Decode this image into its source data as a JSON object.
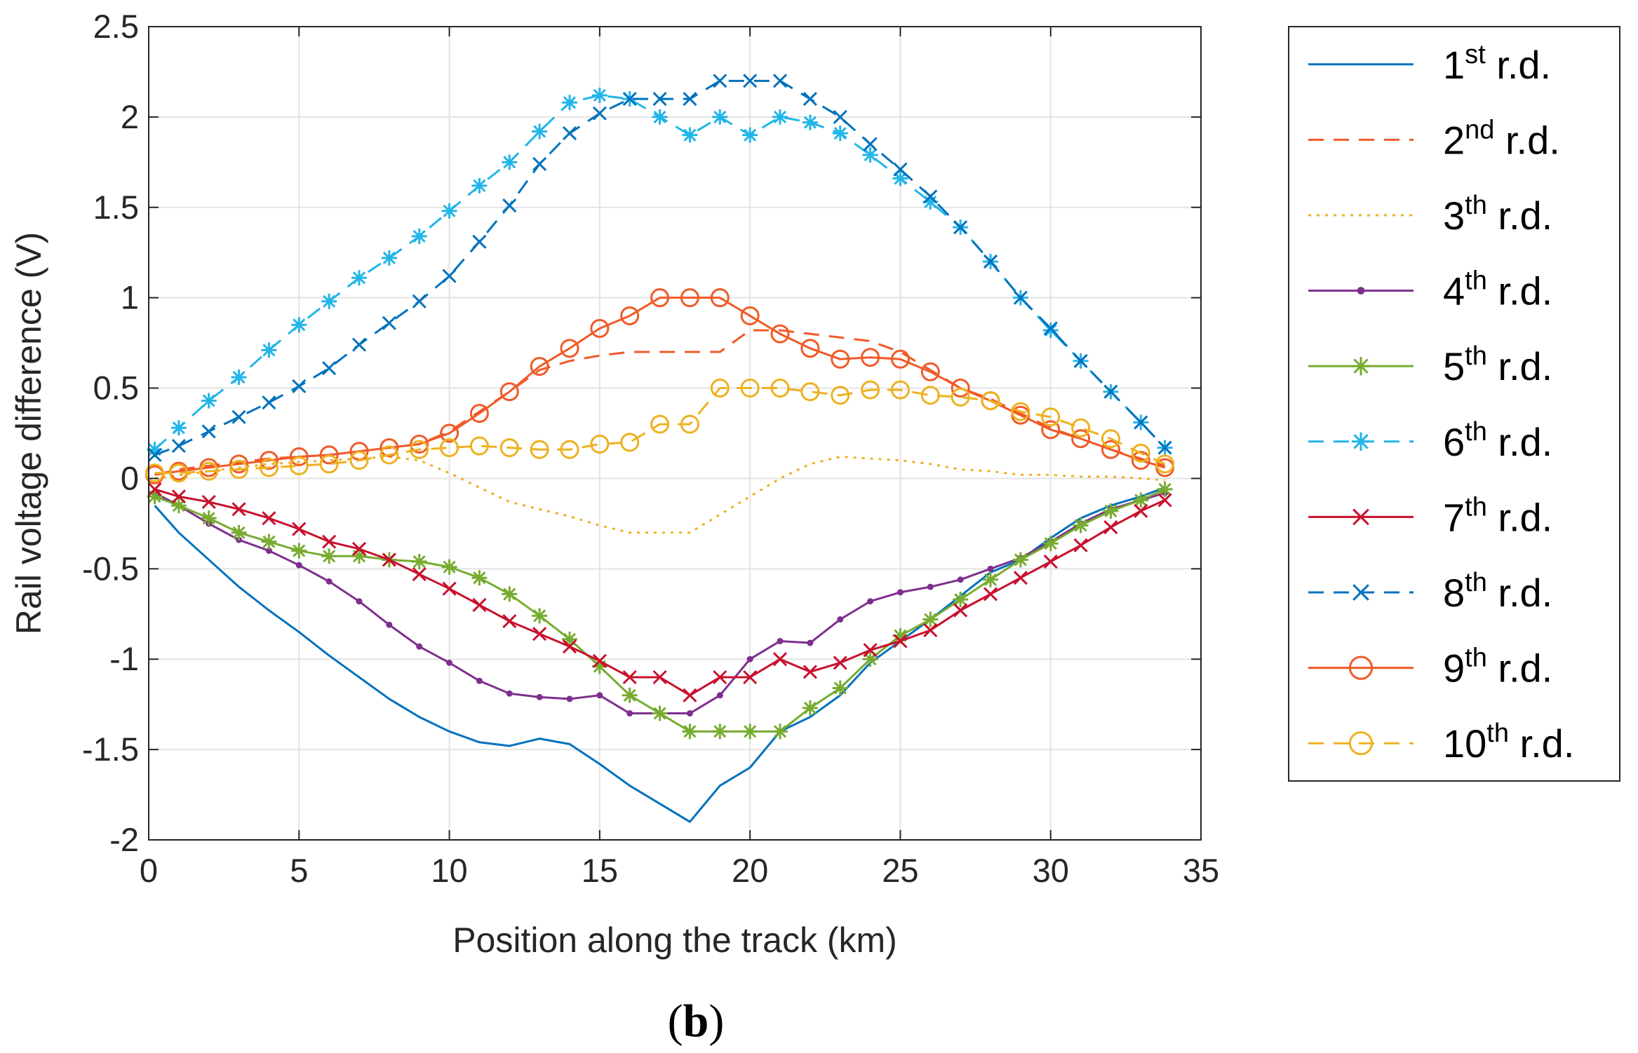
{
  "caption": {
    "open": "(",
    "letter": "b",
    "close": ")"
  },
  "chart_data": {
    "type": "line",
    "title": "",
    "xlabel": "Position along the track (km)",
    "ylabel": "Rail voltage difference (V)",
    "xlim": [
      0,
      35
    ],
    "ylim": [
      -2,
      2.5
    ],
    "xticks": [
      "0",
      "5",
      "10",
      "15",
      "20",
      "25",
      "30",
      "35"
    ],
    "yticks": [
      "-2",
      "-1.5",
      "-1",
      "-0.5",
      "0",
      "0.5",
      "1",
      "1.5",
      "2",
      "2.5"
    ],
    "grid": true,
    "legend_position": "outside-right",
    "series": [
      {
        "name": "1st r.d.",
        "base": "1",
        "sup": "st",
        "suffix": " r.d.",
        "color": "#0072BD",
        "dash": "solid",
        "marker": "none",
        "x": [
          0.2,
          1,
          2,
          3,
          4,
          5,
          6,
          7,
          8,
          9,
          10,
          11,
          12,
          13,
          14,
          15,
          16,
          17,
          18,
          19,
          20,
          21,
          22,
          23,
          24,
          25,
          26,
          27,
          28,
          29,
          30,
          31,
          32,
          33,
          33.8
        ],
        "y": [
          -0.15,
          -0.3,
          -0.45,
          -0.6,
          -0.73,
          -0.85,
          -0.98,
          -1.1,
          -1.22,
          -1.32,
          -1.4,
          -1.46,
          -1.48,
          -1.44,
          -1.47,
          -1.58,
          -1.7,
          -1.8,
          -1.9,
          -1.7,
          -1.6,
          -1.4,
          -1.32,
          -1.2,
          -1.02,
          -0.9,
          -0.78,
          -0.65,
          -0.52,
          -0.45,
          -0.33,
          -0.22,
          -0.15,
          -0.1,
          -0.05
        ]
      },
      {
        "name": "2nd r.d.",
        "base": "2",
        "sup": "nd",
        "suffix": " r.d.",
        "color": "#F05A28",
        "dash": "dashed",
        "marker": "none",
        "x": [
          0.2,
          1,
          2,
          3,
          4,
          5,
          6,
          7,
          8,
          9,
          10,
          11,
          12,
          13,
          14,
          15,
          16,
          17,
          18,
          19,
          20,
          21,
          22,
          23,
          24,
          25,
          26,
          27,
          28,
          29,
          30,
          31,
          32,
          33,
          33.8
        ],
        "y": [
          0.02,
          0.05,
          0.07,
          0.09,
          0.11,
          0.12,
          0.13,
          0.15,
          0.17,
          0.19,
          0.26,
          0.37,
          0.48,
          0.6,
          0.65,
          0.68,
          0.7,
          0.7,
          0.7,
          0.7,
          0.82,
          0.82,
          0.8,
          0.78,
          0.76,
          0.7,
          0.6,
          0.5,
          0.44,
          0.36,
          0.28,
          0.22,
          0.16,
          0.11,
          0.07
        ]
      },
      {
        "name": "3th r.d.",
        "base": "3",
        "sup": "th",
        "suffix": " r.d.",
        "color": "#EDB120",
        "dash": "dotted",
        "marker": "none",
        "x": [
          0.2,
          2,
          4,
          6,
          8,
          9,
          10,
          11,
          12,
          13,
          14,
          15,
          16,
          17,
          18,
          19,
          20,
          21,
          22,
          23,
          24,
          25,
          26,
          27,
          28,
          29,
          30,
          31,
          32,
          33,
          33.8
        ],
        "y": [
          0.0,
          0.04,
          0.08,
          0.1,
          0.12,
          0.1,
          0.03,
          -0.05,
          -0.13,
          -0.17,
          -0.21,
          -0.26,
          -0.3,
          -0.3,
          -0.3,
          -0.2,
          -0.1,
          0.0,
          0.08,
          0.12,
          0.11,
          0.1,
          0.08,
          0.05,
          0.04,
          0.02,
          0.02,
          0.01,
          0.01,
          0.0,
          -0.01
        ]
      },
      {
        "name": "4th r.d.",
        "base": "4",
        "sup": "th",
        "suffix": " r.d.",
        "color": "#7E2F8E",
        "dash": "solid",
        "marker": "dot",
        "x": [
          0.2,
          1,
          2,
          3,
          4,
          5,
          6,
          7,
          8,
          9,
          10,
          11,
          12,
          13,
          14,
          15,
          16,
          17,
          18,
          19,
          20,
          21,
          22,
          23,
          24,
          25,
          26,
          27,
          28,
          29,
          30,
          31,
          32,
          33,
          33.8
        ],
        "y": [
          -0.08,
          -0.15,
          -0.25,
          -0.34,
          -0.4,
          -0.48,
          -0.57,
          -0.68,
          -0.81,
          -0.93,
          -1.02,
          -1.12,
          -1.19,
          -1.21,
          -1.22,
          -1.2,
          -1.3,
          -1.3,
          -1.3,
          -1.2,
          -1.0,
          -0.9,
          -0.91,
          -0.78,
          -0.68,
          -0.63,
          -0.6,
          -0.56,
          -0.5,
          -0.44,
          -0.35,
          -0.25,
          -0.17,
          -0.12,
          -0.08
        ]
      },
      {
        "name": "5th r.d.",
        "base": "5",
        "sup": "th",
        "suffix": " r.d.",
        "color": "#77AC30",
        "dash": "solid",
        "marker": "asterisk",
        "x": [
          0.2,
          1,
          2,
          3,
          4,
          5,
          6,
          7,
          8,
          9,
          10,
          11,
          12,
          13,
          14,
          15,
          16,
          17,
          18,
          19,
          20,
          21,
          22,
          23,
          24,
          25,
          26,
          27,
          28,
          29,
          30,
          31,
          32,
          33,
          33.8
        ],
        "y": [
          -0.1,
          -0.15,
          -0.22,
          -0.3,
          -0.35,
          -0.4,
          -0.43,
          -0.43,
          -0.45,
          -0.46,
          -0.49,
          -0.55,
          -0.64,
          -0.76,
          -0.89,
          -1.04,
          -1.2,
          -1.3,
          -1.4,
          -1.4,
          -1.4,
          -1.4,
          -1.27,
          -1.16,
          -1.0,
          -0.87,
          -0.78,
          -0.67,
          -0.56,
          -0.45,
          -0.36,
          -0.26,
          -0.18,
          -0.12,
          -0.06
        ]
      },
      {
        "name": "6th r.d.",
        "base": "6",
        "sup": "th",
        "suffix": " r.d.",
        "color": "#22B5E8",
        "dash": "dashed",
        "marker": "asterisk",
        "x": [
          0.2,
          1,
          2,
          3,
          4,
          5,
          6,
          7,
          8,
          9,
          10,
          11,
          12,
          13,
          14,
          15,
          16,
          17,
          18,
          19,
          20,
          21,
          22,
          23,
          24,
          25,
          26,
          27,
          28,
          29,
          30,
          31,
          32,
          33,
          33.8
        ],
        "y": [
          0.16,
          0.28,
          0.43,
          0.56,
          0.71,
          0.85,
          0.98,
          1.11,
          1.22,
          1.34,
          1.48,
          1.62,
          1.75,
          1.92,
          2.08,
          2.12,
          2.1,
          2.0,
          1.9,
          2.0,
          1.9,
          2.0,
          1.97,
          1.91,
          1.79,
          1.66,
          1.53,
          1.39,
          1.2,
          1.0,
          0.82,
          0.65,
          0.48,
          0.31,
          0.17
        ]
      },
      {
        "name": "7th r.d.",
        "base": "7",
        "sup": "th",
        "suffix": " r.d.",
        "color": "#C8102E",
        "dash": "solid",
        "marker": "x",
        "x": [
          0.2,
          1,
          2,
          3,
          4,
          5,
          6,
          7,
          8,
          9,
          10,
          11,
          12,
          13,
          14,
          15,
          16,
          17,
          18,
          19,
          20,
          21,
          22,
          23,
          24,
          25,
          26,
          27,
          28,
          29,
          30,
          31,
          32,
          33,
          33.8
        ],
        "y": [
          -0.06,
          -0.1,
          -0.13,
          -0.17,
          -0.22,
          -0.28,
          -0.35,
          -0.39,
          -0.45,
          -0.53,
          -0.61,
          -0.7,
          -0.79,
          -0.86,
          -0.93,
          -1.01,
          -1.1,
          -1.1,
          -1.2,
          -1.1,
          -1.1,
          -1.0,
          -1.07,
          -1.02,
          -0.95,
          -0.9,
          -0.84,
          -0.73,
          -0.64,
          -0.55,
          -0.46,
          -0.37,
          -0.27,
          -0.18,
          -0.12
        ]
      },
      {
        "name": "8th r.d.",
        "base": "8",
        "sup": "th",
        "suffix": " r.d.",
        "color": "#0072BD",
        "dash": "dashed",
        "marker": "x",
        "x": [
          0.2,
          1,
          2,
          3,
          4,
          5,
          6,
          7,
          8,
          9,
          10,
          11,
          12,
          13,
          14,
          15,
          16,
          17,
          18,
          19,
          20,
          21,
          22,
          23,
          24,
          25,
          26,
          27,
          28,
          29,
          30,
          31,
          32,
          33,
          33.8
        ],
        "y": [
          0.13,
          0.18,
          0.26,
          0.34,
          0.42,
          0.51,
          0.61,
          0.74,
          0.86,
          0.98,
          1.12,
          1.31,
          1.51,
          1.74,
          1.91,
          2.02,
          2.1,
          2.1,
          2.1,
          2.2,
          2.2,
          2.2,
          2.1,
          2.0,
          1.85,
          1.71,
          1.56,
          1.39,
          1.2,
          1.0,
          0.83,
          0.65,
          0.48,
          0.31,
          0.17
        ]
      },
      {
        "name": "9th r.d.",
        "base": "9",
        "sup": "th",
        "suffix": " r.d.",
        "color": "#F05A28",
        "dash": "solid",
        "marker": "circle",
        "x": [
          0.2,
          1,
          2,
          3,
          4,
          5,
          6,
          7,
          8,
          9,
          10,
          11,
          12,
          13,
          14,
          15,
          16,
          17,
          18,
          19,
          20,
          21,
          22,
          23,
          24,
          25,
          26,
          27,
          28,
          29,
          30,
          31,
          32,
          33,
          33.8
        ],
        "y": [
          0.02,
          0.04,
          0.06,
          0.08,
          0.1,
          0.12,
          0.13,
          0.15,
          0.17,
          0.19,
          0.25,
          0.36,
          0.48,
          0.62,
          0.72,
          0.83,
          0.9,
          1.0,
          1.0,
          1.0,
          0.9,
          0.8,
          0.72,
          0.66,
          0.67,
          0.66,
          0.59,
          0.5,
          0.43,
          0.35,
          0.27,
          0.22,
          0.16,
          0.1,
          0.06
        ]
      },
      {
        "name": "10th r.d.",
        "base": "10",
        "sup": "th",
        "suffix": " r.d.",
        "color": "#EDB120",
        "dash": "dashed",
        "marker": "circle",
        "x": [
          0.2,
          1,
          2,
          3,
          4,
          5,
          6,
          7,
          8,
          9,
          10,
          11,
          12,
          13,
          14,
          15,
          16,
          17,
          18,
          19,
          20,
          21,
          22,
          23,
          24,
          25,
          26,
          27,
          28,
          29,
          30,
          31,
          32,
          33,
          33.8
        ],
        "y": [
          0.03,
          0.03,
          0.04,
          0.05,
          0.06,
          0.07,
          0.08,
          0.1,
          0.13,
          0.16,
          0.17,
          0.18,
          0.17,
          0.16,
          0.16,
          0.19,
          0.2,
          0.3,
          0.3,
          0.5,
          0.5,
          0.5,
          0.48,
          0.46,
          0.49,
          0.49,
          0.46,
          0.45,
          0.43,
          0.37,
          0.34,
          0.28,
          0.22,
          0.14,
          0.08
        ]
      }
    ]
  }
}
